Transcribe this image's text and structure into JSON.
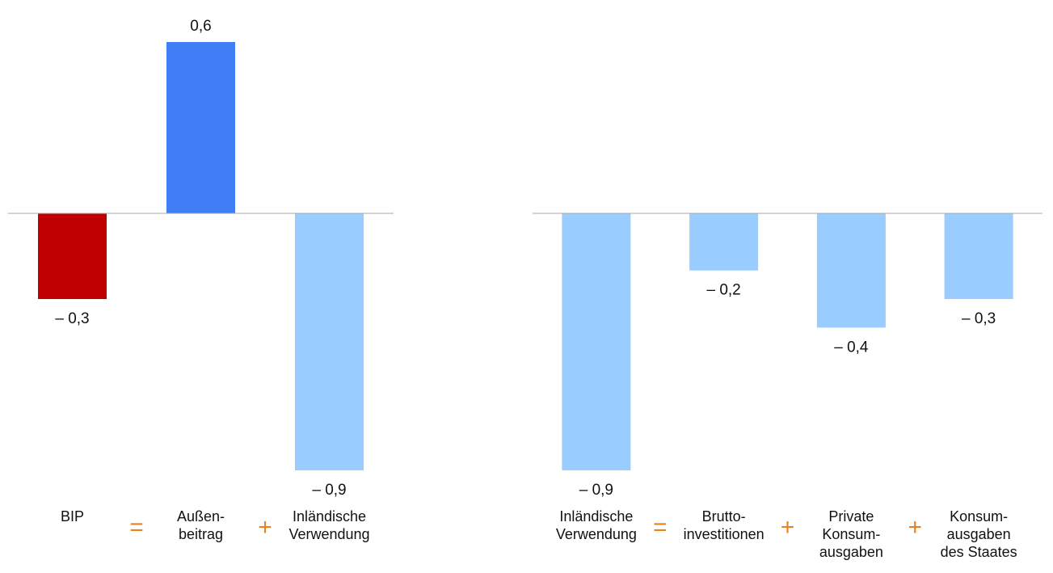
{
  "chart_data": [
    {
      "type": "bar",
      "categories": [
        "BIP",
        "Außen-\nbeitrag",
        "Inländische\nVerwendung"
      ],
      "values": [
        -0.3,
        0.6,
        -0.9
      ],
      "value_labels": [
        "– 0,3",
        "0,6",
        "– 0,9"
      ],
      "colors": [
        "#c00000",
        "#3f7ef5",
        "#99ccff"
      ],
      "operators": [
        "=",
        "+"
      ],
      "ylim": [
        -0.9,
        0.6
      ]
    },
    {
      "type": "bar",
      "categories": [
        "Inländische\nVerwendung",
        "Brutto-\ninvestitionen",
        "Private\nKonsum-\nausgaben",
        "Konsum-\nausgaben\ndes Staates"
      ],
      "values": [
        -0.9,
        -0.2,
        -0.4,
        -0.3
      ],
      "value_labels": [
        "– 0,9",
        "– 0,2",
        "– 0,4",
        "– 0,3"
      ],
      "colors": [
        "#99ccff",
        "#99ccff",
        "#99ccff",
        "#99ccff"
      ],
      "operators": [
        "=",
        "+",
        "+"
      ],
      "ylim": [
        -0.9,
        0.6
      ]
    }
  ]
}
